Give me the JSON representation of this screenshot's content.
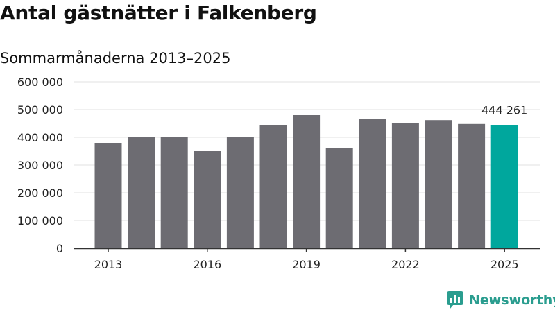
{
  "chart_data": {
    "type": "bar",
    "title": "Antal gästnätter i Falkenberg",
    "subtitle": "Sommarmånaderna 2013–2025",
    "categories": [
      "2013",
      "2014",
      "2015",
      "2016",
      "2017",
      "2018",
      "2019",
      "2020",
      "2021",
      "2022",
      "2023",
      "2024",
      "2025"
    ],
    "values": [
      380000,
      400000,
      400000,
      350000,
      400000,
      443000,
      480000,
      362000,
      467000,
      450000,
      462000,
      448000,
      444261
    ],
    "x_tick_labels": [
      "2013",
      "2016",
      "2019",
      "2022",
      "2025"
    ],
    "y_ticks": [
      0,
      100000,
      200000,
      300000,
      400000,
      500000,
      600000
    ],
    "y_tick_labels": [
      "0",
      "100 000",
      "200 000",
      "300 000",
      "400 000",
      "500 000",
      "600 000"
    ],
    "ylim": [
      0,
      600000
    ],
    "grid": true,
    "highlight_index": 12,
    "highlight_label": "444 261",
    "colors": {
      "bar": "#6d6c72",
      "highlight": "#00a79d",
      "grid": "#e2e2e2",
      "axis": "#333333"
    }
  },
  "brand": {
    "name": "Newsworthy",
    "icon": "bar-chart-logo-icon",
    "color": "#2a9d8f"
  }
}
